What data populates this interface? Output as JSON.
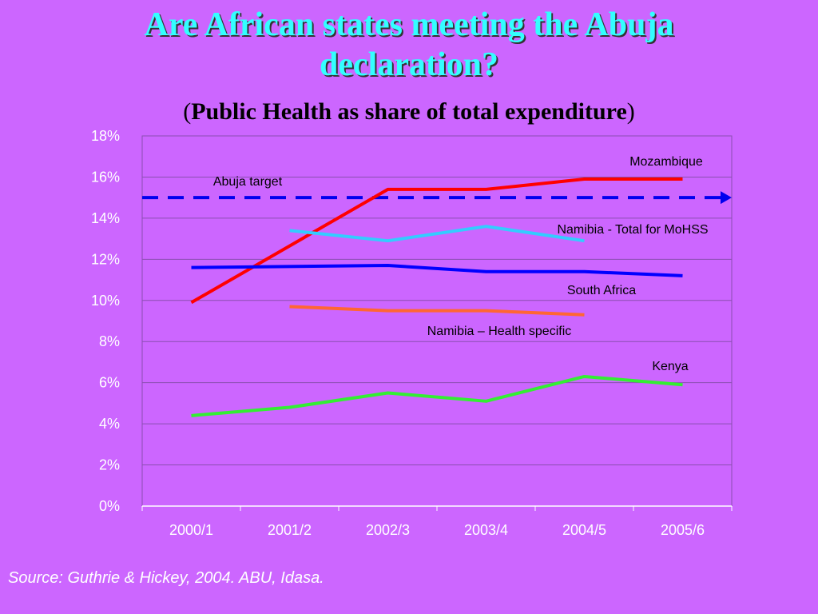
{
  "slide": {
    "title_line1": "Are African states meeting the Abuja",
    "title_line2": "declaration?",
    "subtitle_open": "(",
    "subtitle_bold": "Public Health as share of total expenditure",
    "subtitle_close": ")",
    "source": "Source: Guthrie & Hickey, 2004. ABU, Idasa."
  },
  "chart_data": {
    "type": "line",
    "title": "",
    "xlabel": "",
    "ylabel": "",
    "categories": [
      "2000/1",
      "2001/2",
      "2002/3",
      "2003/4",
      "2004/5",
      "2005/6"
    ],
    "ylim": [
      0,
      18
    ],
    "yticks": [
      0,
      2,
      4,
      6,
      8,
      10,
      12,
      14,
      16,
      18
    ],
    "ytick_labels": [
      "0%",
      "2%",
      "4%",
      "6%",
      "8%",
      "10%",
      "12%",
      "14%",
      "16%",
      "18%"
    ],
    "grid": true,
    "legend": "none",
    "series": [
      {
        "name": "Mozambique",
        "color": "#ff0000",
        "values": [
          9.9,
          null,
          15.4,
          15.4,
          15.9,
          15.9
        ]
      },
      {
        "name": "Namibia - Total for MoHSS",
        "color": "#33ccff",
        "values": [
          null,
          13.4,
          12.9,
          13.6,
          12.9,
          null
        ]
      },
      {
        "name": "South Africa",
        "color": "#0000ff",
        "values": [
          11.6,
          null,
          11.7,
          11.4,
          11.4,
          11.2
        ]
      },
      {
        "name": "Namibia – Health specific",
        "color": "#ff6633",
        "values": [
          null,
          9.7,
          9.5,
          9.5,
          9.3,
          null
        ]
      },
      {
        "name": "Kenya",
        "color": "#33ee33",
        "values": [
          4.4,
          4.8,
          5.5,
          5.1,
          6.3,
          5.9
        ]
      }
    ],
    "target": {
      "name": "Abuja target",
      "value": 15,
      "color": "#0000ee"
    }
  }
}
